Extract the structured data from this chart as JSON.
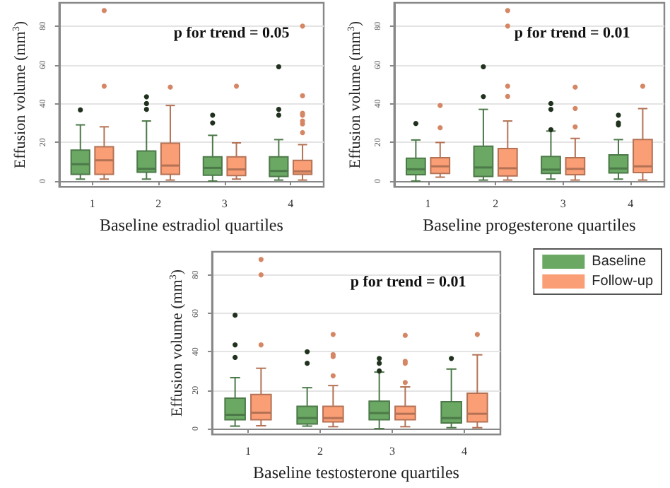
{
  "chart_data": [
    {
      "type": "box",
      "xlabel": "Baseline estradiol quartiles",
      "ylabel": "Effusion volume (mm$^{3}$)",
      "annotations": [
        "p for trend = 0.05"
      ],
      "categories": [
        "1",
        "2",
        "3",
        "4"
      ],
      "ylim": [
        -3,
        92
      ],
      "yticks": [
        0,
        20,
        40,
        60,
        80
      ],
      "grid": "y",
      "legend": false,
      "series": [
        {
          "color": "#6aa864",
          "boxes": [
            {
              "low": 1,
              "q1": 3.5,
              "median": 8.7,
              "q3": 16,
              "high": 29,
              "outliers": [
                36.7
              ]
            },
            {
              "low": 1,
              "q1": 4.6,
              "median": 6.3,
              "q3": 15.5,
              "high": 31,
              "outliers": [
                37,
                40,
                43.5
              ]
            },
            {
              "low": 0,
              "q1": 3,
              "median": 6.8,
              "q3": 12.5,
              "high": 23.6,
              "outliers": [
                30,
                34
              ]
            },
            {
              "low": 0.5,
              "q1": 2.4,
              "median": 5.2,
              "q3": 12.5,
              "high": 21.4,
              "outliers": [
                34,
                37,
                59
              ]
            }
          ]
        },
        {
          "color": "#fa9e76",
          "boxes": [
            {
              "low": 1,
              "q1": 3.5,
              "median": 10.7,
              "q3": 17.7,
              "high": 28,
              "outliers": [
                49,
                88
              ]
            },
            {
              "low": 0.5,
              "q1": 3.5,
              "median": 8,
              "q3": 19.5,
              "high": 39,
              "outliers": [
                48.5
              ]
            },
            {
              "low": 1,
              "q1": 2.8,
              "median": 6,
              "q3": 12.5,
              "high": 19.7,
              "outliers": [
                49
              ]
            },
            {
              "low": 0.5,
              "q1": 3.5,
              "median": 5,
              "q3": 10.7,
              "high": 18.8,
              "outliers": [
                25,
                29.5,
                31,
                34,
                35,
                44,
                80
              ]
            }
          ]
        }
      ]
    },
    {
      "type": "box",
      "xlabel": "Baseline progesterone quartiles",
      "ylabel": "Effusion volume (mm$^{3}$)",
      "annotations": [
        "p for trend = 0.01"
      ],
      "categories": [
        "1",
        "2",
        "3",
        "4"
      ],
      "ylim": [
        -3,
        92
      ],
      "yticks": [
        0,
        20,
        40,
        60,
        80
      ],
      "grid": "y",
      "legend": false,
      "series": [
        {
          "color": "#6aa864",
          "boxes": [
            {
              "low": 0,
              "q1": 3.3,
              "median": 6.1,
              "q3": 11.8,
              "high": 21.2,
              "outliers": [
                29.7
              ]
            },
            {
              "low": 0.5,
              "q1": 2.4,
              "median": 7,
              "q3": 18,
              "high": 37,
              "outliers": [
                43.6,
                59
              ]
            },
            {
              "low": 1,
              "q1": 3.9,
              "median": 5.9,
              "q3": 12.7,
              "high": 25.8,
              "outliers": [
                26.5,
                37,
                40
              ]
            },
            {
              "low": 1,
              "q1": 4.2,
              "median": 6.5,
              "q3": 13.5,
              "high": 21.4,
              "outliers": [
                29,
                30,
                34
              ]
            }
          ]
        },
        {
          "color": "#fa9e76",
          "boxes": [
            {
              "low": 2,
              "q1": 3.9,
              "median": 7.6,
              "q3": 12,
              "high": 19.9,
              "outliers": [
                27.5,
                39
              ]
            },
            {
              "low": 0.5,
              "q1": 2.6,
              "median": 6.6,
              "q3": 16.8,
              "high": 31,
              "outliers": [
                43.7,
                49,
                80,
                88
              ]
            },
            {
              "low": 0.5,
              "q1": 3.3,
              "median": 6.3,
              "q3": 12,
              "high": 22,
              "outliers": [
                28,
                37.5,
                48.5
              ]
            },
            {
              "low": 0.5,
              "q1": 4.4,
              "median": 7.6,
              "q3": 21.4,
              "high": 37.4,
              "outliers": [
                49
              ]
            }
          ]
        }
      ]
    },
    {
      "type": "box",
      "xlabel": "Baseline testosterone quartiles",
      "ylabel": "Effusion volume (mm$^{3}$)",
      "annotations": [
        "p for trend = 0.01"
      ],
      "categories": [
        "1",
        "2",
        "3",
        "4"
      ],
      "ylim": [
        -3,
        92
      ],
      "yticks": [
        0,
        20,
        40,
        60,
        80
      ],
      "grid": "y",
      "legend": "right",
      "series": [
        {
          "name": "Baseline",
          "color": "#6aa864",
          "boxes": [
            {
              "low": 1.3,
              "q1": 4.6,
              "median": 7.2,
              "q3": 15.8,
              "high": 26.5,
              "outliers": [
                37,
                43.6,
                59
              ]
            },
            {
              "low": 1.3,
              "q1": 2.4,
              "median": 5.5,
              "q3": 11.6,
              "high": 21.3,
              "outliers": [
                34,
                40
              ]
            },
            {
              "low": 0,
              "q1": 4.6,
              "median": 8.1,
              "q3": 14.3,
              "high": 29.4,
              "outliers": [
                30,
                34,
                36.5
              ]
            },
            {
              "low": 0.5,
              "q1": 3,
              "median": 5.5,
              "q3": 14,
              "high": 31,
              "outliers": [
                36.5
              ]
            }
          ]
        },
        {
          "name": "Follow-up",
          "color": "#fa9e76",
          "boxes": [
            {
              "low": 1.5,
              "q1": 4.6,
              "median": 8.3,
              "q3": 17.8,
              "high": 31.4,
              "outliers": [
                43.6,
                80,
                88
              ]
            },
            {
              "low": 1,
              "q1": 3.5,
              "median": 5.5,
              "q3": 11.6,
              "high": 22.4,
              "outliers": [
                27.5,
                37.5,
                38.5,
                49
              ]
            },
            {
              "low": 1,
              "q1": 4.6,
              "median": 7.7,
              "q3": 11.6,
              "high": 21.7,
              "outliers": [
                24,
                34,
                35,
                48.5
              ]
            },
            {
              "low": 0.5,
              "q1": 3.5,
              "median": 7.7,
              "q3": 18.4,
              "high": 38.4,
              "outliers": [
                49
              ]
            }
          ]
        }
      ]
    }
  ]
}
